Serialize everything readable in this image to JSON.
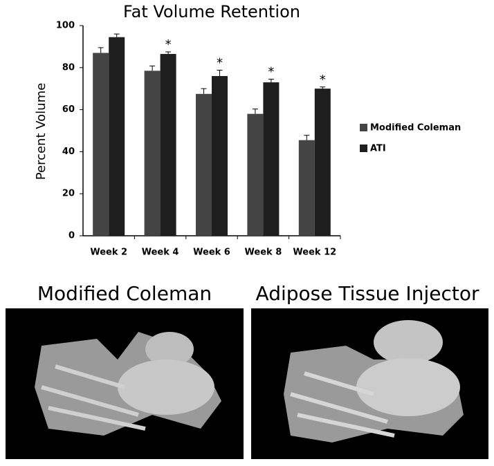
{
  "chart_data": {
    "type": "bar",
    "title": "Fat Volume Retention",
    "ylabel": "Percent Volume",
    "categories": [
      "Week 2",
      "Week 4",
      "Week 6",
      "Week 8",
      "Week 12"
    ],
    "series": [
      {
        "name": "Modified Coleman",
        "color": "#444444",
        "values": [
          87,
          78.5,
          67.5,
          58,
          45.5
        ],
        "errors": [
          2.5,
          2.3,
          2.5,
          2.3,
          2.3
        ]
      },
      {
        "name": "ATI",
        "color": "#1e1e1e",
        "values": [
          94.5,
          86.5,
          76,
          73,
          70
        ],
        "errors": [
          1.5,
          1,
          2.8,
          1.5,
          0.8
        ],
        "significance": [
          null,
          "*",
          "*",
          "*",
          "*"
        ]
      }
    ],
    "ylim": [
      0,
      100
    ],
    "yticks": [
      0,
      20,
      40,
      60,
      80,
      100
    ],
    "grid": false,
    "legend": "right"
  },
  "panels": [
    {
      "title": "Modified Coleman"
    },
    {
      "title": "Adipose Tissue Injector"
    }
  ]
}
